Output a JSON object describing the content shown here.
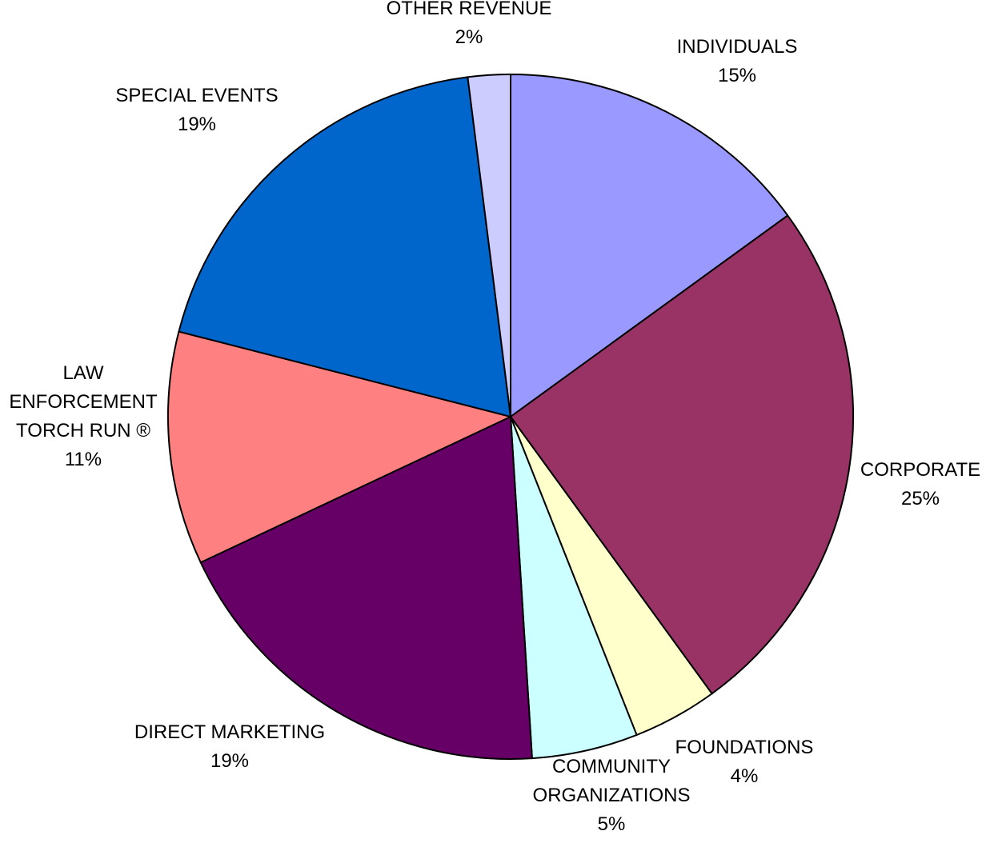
{
  "chart_data": {
    "type": "pie",
    "title": "",
    "start_angle_deg": 0,
    "direction": "clockwise",
    "slices": [
      {
        "label_lines": [
          "INDIVIDUALS"
        ],
        "value": 15,
        "value_text": "15%",
        "color": "#9999FF"
      },
      {
        "label_lines": [
          "CORPORATE"
        ],
        "value": 25,
        "value_text": "25%",
        "color": "#993366"
      },
      {
        "label_lines": [
          "FOUNDATIONS"
        ],
        "value": 4,
        "value_text": "4%",
        "color": "#FFFFCC"
      },
      {
        "label_lines": [
          "COMMUNITY",
          "ORGANIZATIONS"
        ],
        "value": 5,
        "value_text": "5%",
        "color": "#CCFFFF"
      },
      {
        "label_lines": [
          "DIRECT MARKETING"
        ],
        "value": 19,
        "value_text": "19%",
        "color": "#660066"
      },
      {
        "label_lines": [
          "LAW",
          "ENFORCEMENT",
          "TORCH RUN ®"
        ],
        "value": 11,
        "value_text": "11%",
        "color": "#FF8080"
      },
      {
        "label_lines": [
          "SPECIAL EVENTS"
        ],
        "value": 19,
        "value_text": "19%",
        "color": "#0066CC"
      },
      {
        "label_lines": [
          "OTHER REVENUE"
        ],
        "value": 2,
        "value_text": "2%",
        "color": "#CCCCFF"
      }
    ]
  }
}
